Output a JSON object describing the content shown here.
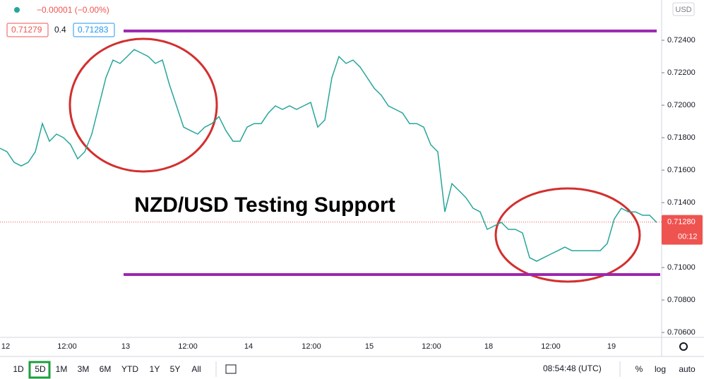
{
  "chart_data": {
    "type": "line",
    "annotation": "NZD/USD Testing Support",
    "legend": {
      "change": "−0.00001 (−0.00%)",
      "bid": "0.71279",
      "spread": "0.4",
      "ask": "0.71283"
    },
    "currency": "USD",
    "last_price": {
      "value": 0.7128,
      "label": "0.71280"
    },
    "countdown": "00:12",
    "x_labels": [
      "12",
      "12:00",
      "13",
      "12:00",
      "14",
      "12:00",
      "15",
      "12:00",
      "18",
      "12:00",
      "19"
    ],
    "series": [
      {
        "name": "NZD/USD",
        "color": "#26a69a",
        "values": [
          0.71735,
          0.71713,
          0.71648,
          0.71626,
          0.71648,
          0.71713,
          0.71887,
          0.71778,
          0.71822,
          0.718,
          0.71757,
          0.7167,
          0.71713,
          0.71822,
          0.71996,
          0.7217,
          0.72278,
          0.72257,
          0.723,
          0.72343,
          0.72322,
          0.723,
          0.72257,
          0.72278,
          0.72126,
          0.71996,
          0.71865,
          0.71843,
          0.71822,
          0.71865,
          0.71887,
          0.7193,
          0.71843,
          0.71778,
          0.71778,
          0.71865,
          0.71887,
          0.71887,
          0.71952,
          0.71996,
          0.71974,
          0.71996,
          0.71974,
          0.71996,
          0.72017,
          0.71865,
          0.71909,
          0.7217,
          0.723,
          0.72257,
          0.72278,
          0.72235,
          0.7217,
          0.72104,
          0.72061,
          0.71996,
          0.71974,
          0.71952,
          0.71887,
          0.71887,
          0.71865,
          0.71757,
          0.71713,
          0.71343,
          0.71517,
          0.71474,
          0.7143,
          0.71365,
          0.71343,
          0.71235,
          0.71257,
          0.71278,
          0.71235,
          0.71235,
          0.71213,
          0.71061,
          0.71039,
          0.71061,
          0.71083,
          0.71104,
          0.71126,
          0.71104,
          0.71104,
          0.71104,
          0.71104,
          0.71104,
          0.71148,
          0.713,
          0.71365,
          0.71343,
          0.71343,
          0.71322,
          0.71322,
          0.71278
        ]
      }
    ],
    "levels": [
      0.72457,
      0.70957
    ],
    "ylim": [
      0.7057,
      0.72648
    ],
    "yticks": [
      {
        "value": 0.706,
        "label": "0.70600"
      },
      {
        "value": 0.708,
        "label": "0.70800"
      },
      {
        "value": 0.71,
        "label": "0.71000"
      },
      {
        "value": 0.714,
        "label": "0.71400"
      },
      {
        "value": 0.716,
        "label": "0.71600"
      },
      {
        "value": 0.718,
        "label": "0.71800"
      },
      {
        "value": 0.72,
        "label": "0.72000"
      },
      {
        "value": 0.722,
        "label": "0.72200"
      },
      {
        "value": 0.724,
        "label": "0.72400"
      }
    ],
    "grid": false,
    "level_color": "#9c27b0"
  },
  "toolbar": {
    "ranges": [
      "1D",
      "5D",
      "1M",
      "3M",
      "6M",
      "YTD",
      "1Y",
      "5Y",
      "All"
    ],
    "selected": 1,
    "clock": "08:54:48 (UTC)",
    "options": [
      "%",
      "log",
      "auto"
    ]
  }
}
